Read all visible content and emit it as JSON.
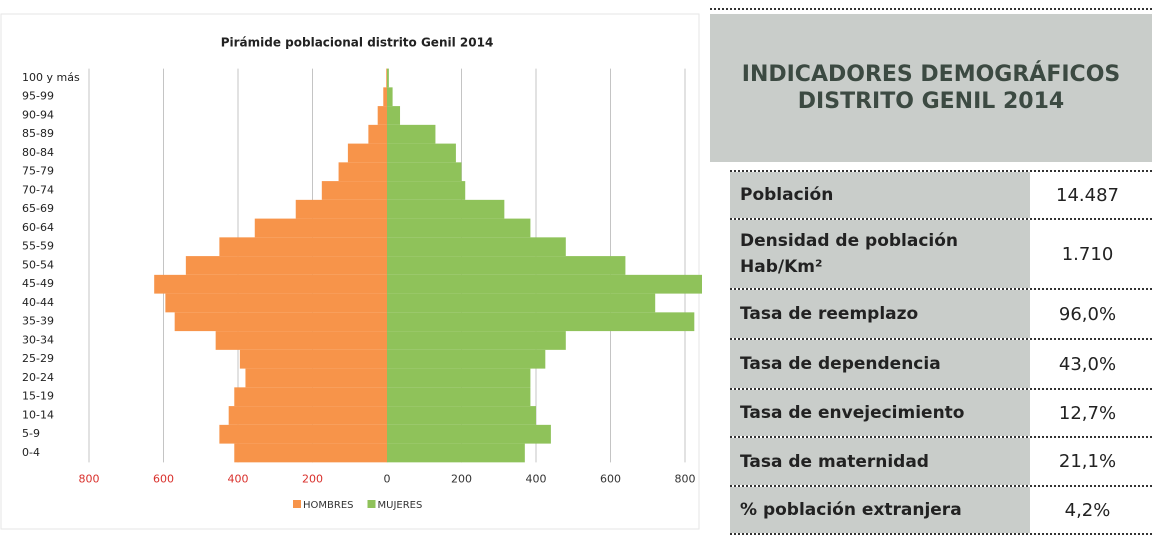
{
  "chart_data": {
    "type": "pyramid",
    "title": "Pirámide poblacional distrito Genil 2014",
    "categories": [
      "100 y más",
      "95-99",
      "90-94",
      "85-89",
      "80-84",
      "75-79",
      "70-74",
      "65-69",
      "60-64",
      "55-59",
      "50-54",
      "45-49",
      "40-44",
      "35-39",
      "30-34",
      "25-29",
      "20-24",
      "15-19",
      "10-14",
      "5-9",
      "0-4"
    ],
    "series": [
      {
        "name": "HOMBRES",
        "color": "#f7944a",
        "side": "left",
        "values": [
          2,
          10,
          25,
          50,
          105,
          130,
          175,
          245,
          355,
          450,
          540,
          625,
          595,
          570,
          460,
          395,
          380,
          410,
          425,
          450,
          410
        ]
      },
      {
        "name": "MUJERES",
        "color": "#8fc25a",
        "side": "right",
        "values": [
          5,
          15,
          35,
          130,
          185,
          200,
          210,
          315,
          385,
          480,
          640,
          950,
          720,
          825,
          480,
          425,
          385,
          385,
          400,
          440,
          370
        ]
      }
    ],
    "xlim": [
      -800,
      960
    ],
    "xticks": [
      {
        "value": -800,
        "label": "800"
      },
      {
        "value": -600,
        "label": "600"
      },
      {
        "value": -400,
        "label": "400"
      },
      {
        "value": -200,
        "label": "200"
      },
      0,
      200,
      400,
      600,
      800
    ],
    "grid": true,
    "legend": "bottom"
  },
  "table": {
    "title": "INDICADORES DEMOGRÁFICOS DISTRITO GENIL 2014",
    "rows": [
      [
        "Población",
        "14.487"
      ],
      [
        "Densidad de población Hab/Km²",
        "1.710"
      ],
      [
        "Tasa de reemplazo",
        "96,0%"
      ],
      [
        "Tasa de dependencia",
        "43,0%"
      ],
      [
        "Tasa de envejecimiento",
        "12,7%"
      ],
      [
        "Tasa de maternidad",
        "21,1%"
      ],
      [
        "% población extranjera",
        "4,2%"
      ]
    ]
  }
}
